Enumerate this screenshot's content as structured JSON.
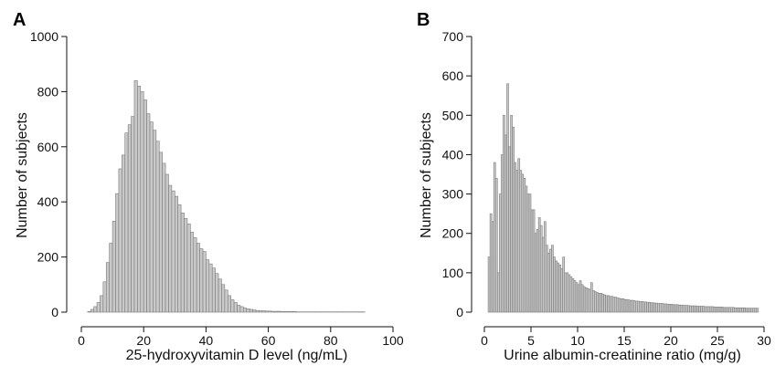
{
  "chart_data": [
    {
      "panel": "A",
      "type": "bar",
      "xlabel": "25-hydroxyvitamin D level (ng/mL)",
      "ylabel": "Number of subjects",
      "xlim": [
        0,
        100
      ],
      "ylim": [
        0,
        1000
      ],
      "xticks": [
        0,
        20,
        40,
        60,
        80,
        100
      ],
      "yticks": [
        0,
        200,
        400,
        600,
        800,
        1000
      ],
      "bin_width": 1,
      "bin_start": 2,
      "values": [
        2,
        10,
        20,
        35,
        60,
        110,
        180,
        250,
        330,
        430,
        520,
        570,
        650,
        680,
        710,
        840,
        820,
        800,
        770,
        720,
        690,
        660,
        620,
        580,
        540,
        500,
        460,
        440,
        420,
        390,
        360,
        340,
        320,
        290,
        270,
        250,
        230,
        220,
        190,
        175,
        160,
        140,
        120,
        100,
        80,
        60,
        45,
        35,
        25,
        20,
        15,
        12,
        10,
        8,
        6,
        5,
        5,
        4,
        4,
        3,
        3,
        3,
        2,
        2,
        2,
        2,
        2,
        1,
        1,
        1,
        1,
        1,
        1,
        1,
        1,
        1,
        1,
        1,
        1,
        1,
        1,
        1,
        1,
        1,
        1,
        1,
        1,
        1,
        1
      ],
      "bar_fill": "#c9c9c9",
      "bar_stroke": "#7a7a7a"
    },
    {
      "panel": "B",
      "type": "bar",
      "xlabel": "Urine albumin-creatinine ratio (mg/g)",
      "ylabel": "Number of subjects",
      "xlim": [
        0,
        30
      ],
      "ylim": [
        0,
        700
      ],
      "xticks": [
        0,
        5,
        10,
        15,
        20,
        25,
        30
      ],
      "yticks": [
        0,
        100,
        200,
        300,
        400,
        500,
        600,
        700
      ],
      "bin_width": 0.2,
      "bin_start": 0.4,
      "values": [
        140,
        250,
        230,
        380,
        340,
        100,
        300,
        400,
        500,
        450,
        580,
        420,
        500,
        470,
        380,
        360,
        390,
        360,
        350,
        340,
        320,
        300,
        300,
        260,
        260,
        200,
        210,
        240,
        220,
        190,
        230,
        170,
        150,
        160,
        170,
        140,
        130,
        125,
        120,
        110,
        140,
        100,
        100,
        95,
        90,
        85,
        80,
        75,
        70,
        80,
        70,
        65,
        62,
        60,
        58,
        75,
        55,
        52,
        50,
        48,
        48,
        46,
        44,
        42,
        42,
        40,
        40,
        38,
        38,
        36,
        35,
        34,
        34,
        32,
        32,
        31,
        30,
        30,
        29,
        28,
        28,
        27,
        27,
        26,
        26,
        25,
        25,
        24,
        24,
        23,
        23,
        22,
        22,
        22,
        21,
        21,
        20,
        20,
        20,
        19,
        19,
        19,
        18,
        18,
        18,
        17,
        17,
        17,
        16,
        16,
        16,
        16,
        15,
        15,
        15,
        15,
        14,
        14,
        14,
        14,
        14,
        13,
        13,
        13,
        13,
        13,
        12,
        12,
        12,
        12,
        12,
        12,
        11,
        11,
        11,
        11,
        11,
        11,
        10,
        10,
        10,
        10,
        10,
        10,
        10
      ],
      "bar_fill": "#c9c9c9",
      "bar_stroke": "#7a7a7a"
    }
  ]
}
